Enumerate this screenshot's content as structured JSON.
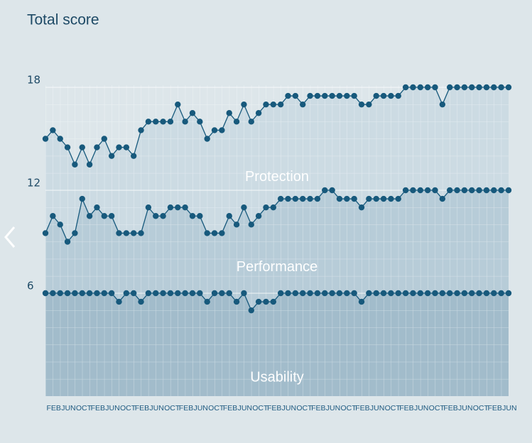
{
  "chart_data": {
    "type": "stacked_area",
    "title": "Total score",
    "categories": [
      "FEB",
      null,
      "JUN",
      null,
      "OCT",
      null,
      "FEB",
      null,
      "JUN",
      null,
      "OCT",
      null,
      "FEB",
      null,
      "JUN",
      null,
      "OCT",
      null,
      "FEB",
      null,
      "JUN",
      null,
      "OCT",
      null,
      "FEB",
      null,
      "JUN",
      null,
      "OCT",
      null,
      "FEB",
      null,
      "JUN",
      null,
      "OCT",
      null,
      "FEB",
      null,
      "JUN",
      null,
      "OCT",
      null,
      "FEB",
      null,
      "JUN",
      null,
      "OCT",
      null,
      "FEB",
      null,
      "JUN",
      null,
      "OCT",
      null,
      "FEB",
      null,
      "JUN",
      null,
      "OCT",
      null,
      "FEB",
      null,
      "JUN",
      null
    ],
    "series": [
      {
        "name": "Usability",
        "color": "#a2bccb",
        "values": [
          6,
          6,
          6,
          6,
          6,
          6,
          6,
          6,
          6,
          6,
          5.5,
          6,
          6,
          5.5,
          6,
          6,
          6,
          6,
          6,
          6,
          6,
          6,
          5.5,
          6,
          6,
          6,
          5.5,
          6,
          5,
          5.5,
          5.5,
          5.5,
          6,
          6,
          6,
          6,
          6,
          6,
          6,
          6,
          6,
          6,
          6,
          5.5,
          6,
          6,
          6,
          6,
          6,
          6,
          6,
          6,
          6,
          6,
          6,
          6,
          6,
          6,
          6,
          6,
          6,
          6,
          6,
          6
        ]
      },
      {
        "name": "Performance",
        "color": "#b7ccd8",
        "values": [
          3.5,
          4.5,
          4,
          3,
          3.5,
          5.5,
          4.5,
          5,
          4.5,
          4.5,
          4,
          3.5,
          3.5,
          4,
          5,
          4.5,
          4.5,
          5,
          5,
          5,
          4.5,
          4.5,
          4,
          3.5,
          3.5,
          4.5,
          4.5,
          5,
          5,
          5,
          5.5,
          5.5,
          5.5,
          5.5,
          5.5,
          5.5,
          5.5,
          5.5,
          6,
          6,
          5.5,
          5.5,
          5.5,
          5.5,
          5.5,
          5.5,
          5.5,
          5.5,
          5.5,
          6,
          6,
          6,
          6,
          6,
          5.5,
          6,
          6,
          6,
          6,
          6,
          6,
          6,
          6,
          6
        ]
      },
      {
        "name": "Protection",
        "color": "#ccdbe3",
        "values": [
          5.5,
          5,
          5,
          5.5,
          4,
          3,
          3,
          3.5,
          4.5,
          3.5,
          5,
          5,
          4.5,
          6,
          5,
          5.5,
          5.5,
          5,
          6,
          5,
          6,
          5.5,
          5.5,
          6,
          6,
          6,
          6,
          6,
          6,
          6,
          6,
          6,
          5.5,
          6,
          6,
          5.5,
          6,
          6,
          5.5,
          5.5,
          6,
          6,
          6,
          6,
          5.5,
          6,
          6,
          6,
          6,
          6,
          6,
          6,
          6,
          6,
          5.5,
          6,
          6,
          6,
          6,
          6,
          6,
          6,
          6,
          6
        ]
      }
    ],
    "line_color": "#17597c",
    "ylim": [
      0,
      18
    ],
    "yticks": [
      6,
      12,
      18
    ],
    "grid": true
  }
}
